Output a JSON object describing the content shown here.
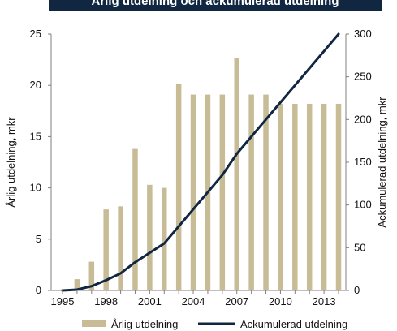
{
  "chart_data": {
    "type": "bar+line",
    "title": "Årlig utdelning och ackumulerad utdelning",
    "x": [
      1995,
      1996,
      1997,
      1998,
      1999,
      2000,
      2001,
      2002,
      2003,
      2004,
      2005,
      2006,
      2007,
      2008,
      2009,
      2010,
      2011,
      2012,
      2013,
      2014
    ],
    "x_tick_labels": [
      "1995",
      "1998",
      "2001",
      "2004",
      "2007",
      "2010",
      "2013"
    ],
    "series": [
      {
        "name": "Årlig utdelning",
        "type": "bar",
        "axis": "left",
        "color": "#c8bc97",
        "values": [
          0.1,
          1.1,
          2.8,
          7.9,
          8.2,
          13.8,
          10.3,
          10.0,
          20.1,
          19.1,
          19.1,
          19.1,
          22.7,
          19.1,
          19.1,
          18.2,
          18.2,
          18.2,
          18.2,
          18.2
        ]
      },
      {
        "name": "Ackumulerad utdelning",
        "type": "line",
        "axis": "right",
        "color": "#112641",
        "values": [
          0,
          1,
          5,
          12,
          20,
          33,
          44,
          55,
          75,
          95,
          115,
          135,
          160,
          180,
          200,
          220,
          240,
          260,
          280,
          300
        ]
      }
    ],
    "ylabel": "Årlig utdelning, mkr",
    "y2label": "Ackumulerad utdelning, mkr",
    "ylim": [
      0,
      25
    ],
    "y2lim": [
      0,
      300
    ],
    "yticks": [
      0,
      5,
      10,
      15,
      20,
      25
    ],
    "y2ticks": [
      0,
      50,
      100,
      150,
      200,
      250,
      300
    ],
    "legend_position": "bottom",
    "grid": false
  }
}
